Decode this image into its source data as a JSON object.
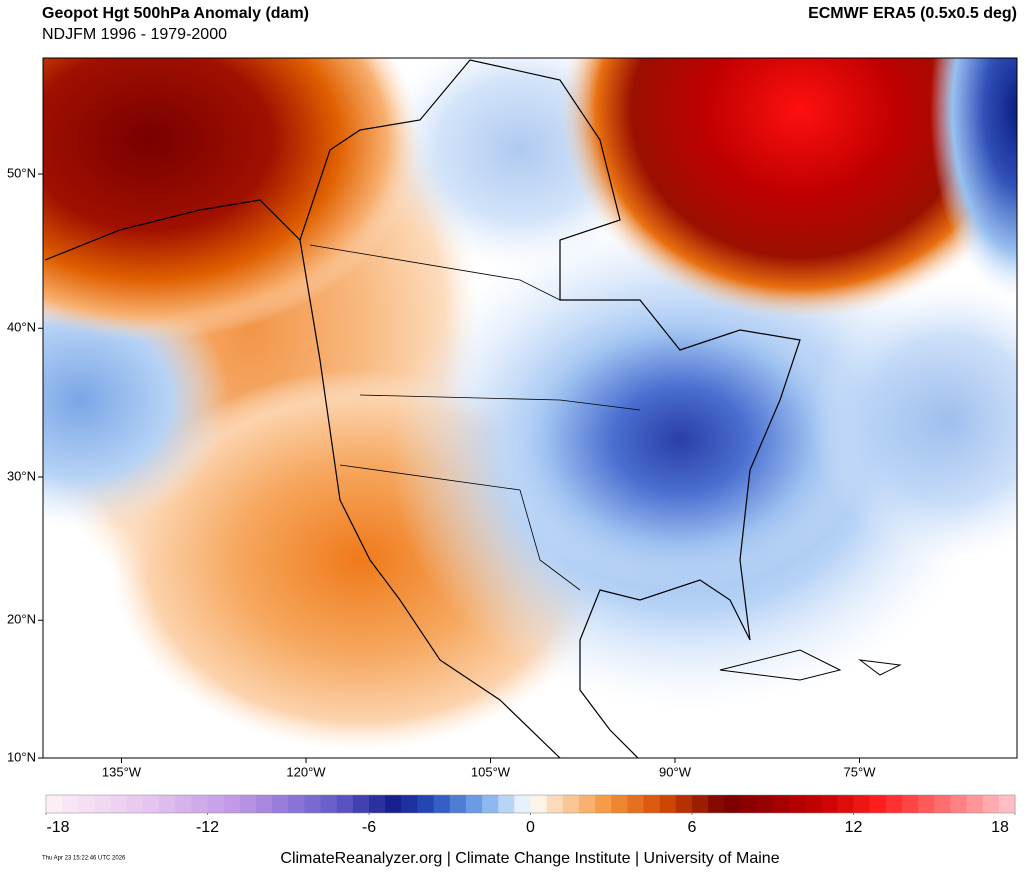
{
  "header": {
    "title": "Geopot Hgt 500hPa Anomaly (dam)",
    "subtitle": "NDJFM 1996 - 1979-2000",
    "source": "ECMWF ERA5 (0.5x0.5 deg)"
  },
  "map": {
    "lat_ticks": [
      {
        "value": 50,
        "label": "50°N"
      },
      {
        "value": 40,
        "label": "40°N"
      },
      {
        "value": 30,
        "label": "30°N"
      },
      {
        "value": 20,
        "label": "20°N"
      },
      {
        "value": 10,
        "label": "10°N"
      }
    ],
    "lon_ticks": [
      {
        "value": -135,
        "label": "135°W"
      },
      {
        "value": -120,
        "label": "120°W"
      },
      {
        "value": -105,
        "label": "105°W"
      },
      {
        "value": -90,
        "label": "90°W"
      },
      {
        "value": -75,
        "label": "75°W"
      }
    ]
  },
  "colorbar": {
    "range": [
      -18,
      18
    ],
    "ticks": [
      -18,
      -12,
      -6,
      0,
      6,
      12,
      18
    ]
  },
  "footer": {
    "credit": "ClimateReanalyzer.org | Climate Change Institute | University of Maine",
    "timestamp": "Thu Apr 23 15:22:46 UTC 2026"
  }
}
